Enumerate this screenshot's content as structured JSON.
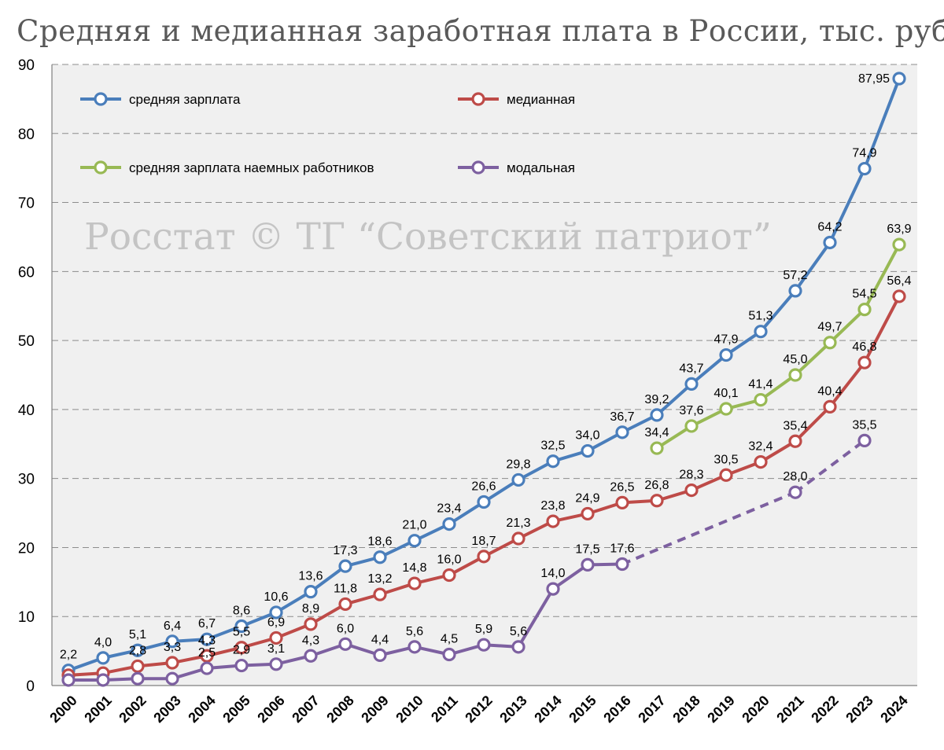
{
  "chart_data": {
    "type": "line",
    "title": "Средняя и медианная заработная плата в России, тыс. руб",
    "watermark": "Росстат © ТГ “Советский патриот”",
    "ylim": [
      0,
      90
    ],
    "y_ticks": [
      0,
      10,
      20,
      30,
      40,
      50,
      60,
      70,
      80,
      90
    ],
    "y_tick_labels": [
      "0",
      "10",
      "20",
      "30",
      "40",
      "50",
      "60",
      "70",
      "80",
      "90"
    ],
    "grid": true,
    "legend_position": "top-left",
    "categories": [
      "2000",
      "2001",
      "2002",
      "2003",
      "2004",
      "2005",
      "2006",
      "2007",
      "2008",
      "2009",
      "2010",
      "2011",
      "2012",
      "2013",
      "2014",
      "2015",
      "2016",
      "2017",
      "2018",
      "2019",
      "2020",
      "2021",
      "2022",
      "2023",
      "2024"
    ],
    "series": [
      {
        "name": "средняя зарплата",
        "color": "#4a7ebb",
        "values": [
          2.2,
          4.0,
          5.1,
          6.4,
          6.7,
          8.6,
          10.6,
          13.6,
          17.3,
          18.6,
          21.0,
          23.4,
          26.6,
          29.8,
          32.5,
          34.0,
          36.7,
          39.2,
          43.7,
          47.9,
          51.3,
          57.2,
          64.2,
          74.9,
          87.95
        ],
        "labels": [
          "2,2",
          "4,0",
          "5,1",
          "6,4",
          "6,7",
          "8,6",
          "10,6",
          "13,6",
          "17,3",
          "18,6",
          "21,0",
          "23,4",
          "26,6",
          "29,8",
          "32,5",
          "34,0",
          "36,7",
          "39,2",
          "43,7",
          "47,9",
          "51,3",
          "57,2",
          "64,2",
          "74,9",
          "87,95"
        ]
      },
      {
        "name": "медианная",
        "color": "#be4b48",
        "values": [
          1.5,
          1.8,
          2.8,
          3.3,
          4.3,
          5.5,
          6.9,
          8.9,
          11.8,
          13.2,
          14.8,
          16.0,
          18.7,
          21.3,
          23.8,
          24.9,
          26.5,
          26.8,
          28.3,
          30.5,
          32.4,
          35.4,
          40.4,
          46.8,
          56.4
        ],
        "labels": [
          "",
          "",
          "2,8",
          "3,3",
          "4,3",
          "5,5",
          "6,9",
          "8,9",
          "11,8",
          "13,2",
          "14,8",
          "16,0",
          "18,7",
          "21,3",
          "23,8",
          "24,9",
          "26,5",
          "26,8",
          "28,3",
          "30,5",
          "32,4",
          "35,4",
          "40,4",
          "46,8",
          "56,4"
        ]
      },
      {
        "name": "средняя зарплата наемных работников",
        "color": "#98b954",
        "values": [
          null,
          null,
          null,
          null,
          null,
          null,
          null,
          null,
          null,
          null,
          null,
          null,
          null,
          null,
          null,
          null,
          null,
          34.4,
          37.6,
          40.1,
          41.4,
          45.0,
          49.7,
          54.5,
          63.9
        ],
        "labels": [
          "",
          "",
          "",
          "",
          "",
          "",
          "",
          "",
          "",
          "",
          "",
          "",
          "",
          "",
          "",
          "",
          "",
          "34,4",
          "37,6",
          "40,1",
          "41,4",
          "45,0",
          "49,7",
          "54,5",
          "63,9"
        ]
      },
      {
        "name": "модальная",
        "color": "#7d60a0",
        "values": [
          0.8,
          0.8,
          1.0,
          1.0,
          2.5,
          2.9,
          3.1,
          4.3,
          6.0,
          4.4,
          5.6,
          4.5,
          5.9,
          5.6,
          14.0,
          17.5,
          17.6,
          null,
          null,
          null,
          null,
          28.0,
          null,
          35.5,
          null
        ],
        "labels": [
          "",
          "",
          "",
          "",
          "2,5",
          "2,9",
          "3,1",
          "4,3",
          "6,0",
          "4,4",
          "5,6",
          "4,5",
          "5,9",
          "5,6",
          "14,0",
          "17,5",
          "17,6",
          "",
          "",
          "",
          "",
          "28,0",
          "",
          "35,5",
          ""
        ],
        "dashed_segments": [
          [
            16,
            21
          ],
          [
            21,
            23
          ]
        ]
      }
    ]
  }
}
